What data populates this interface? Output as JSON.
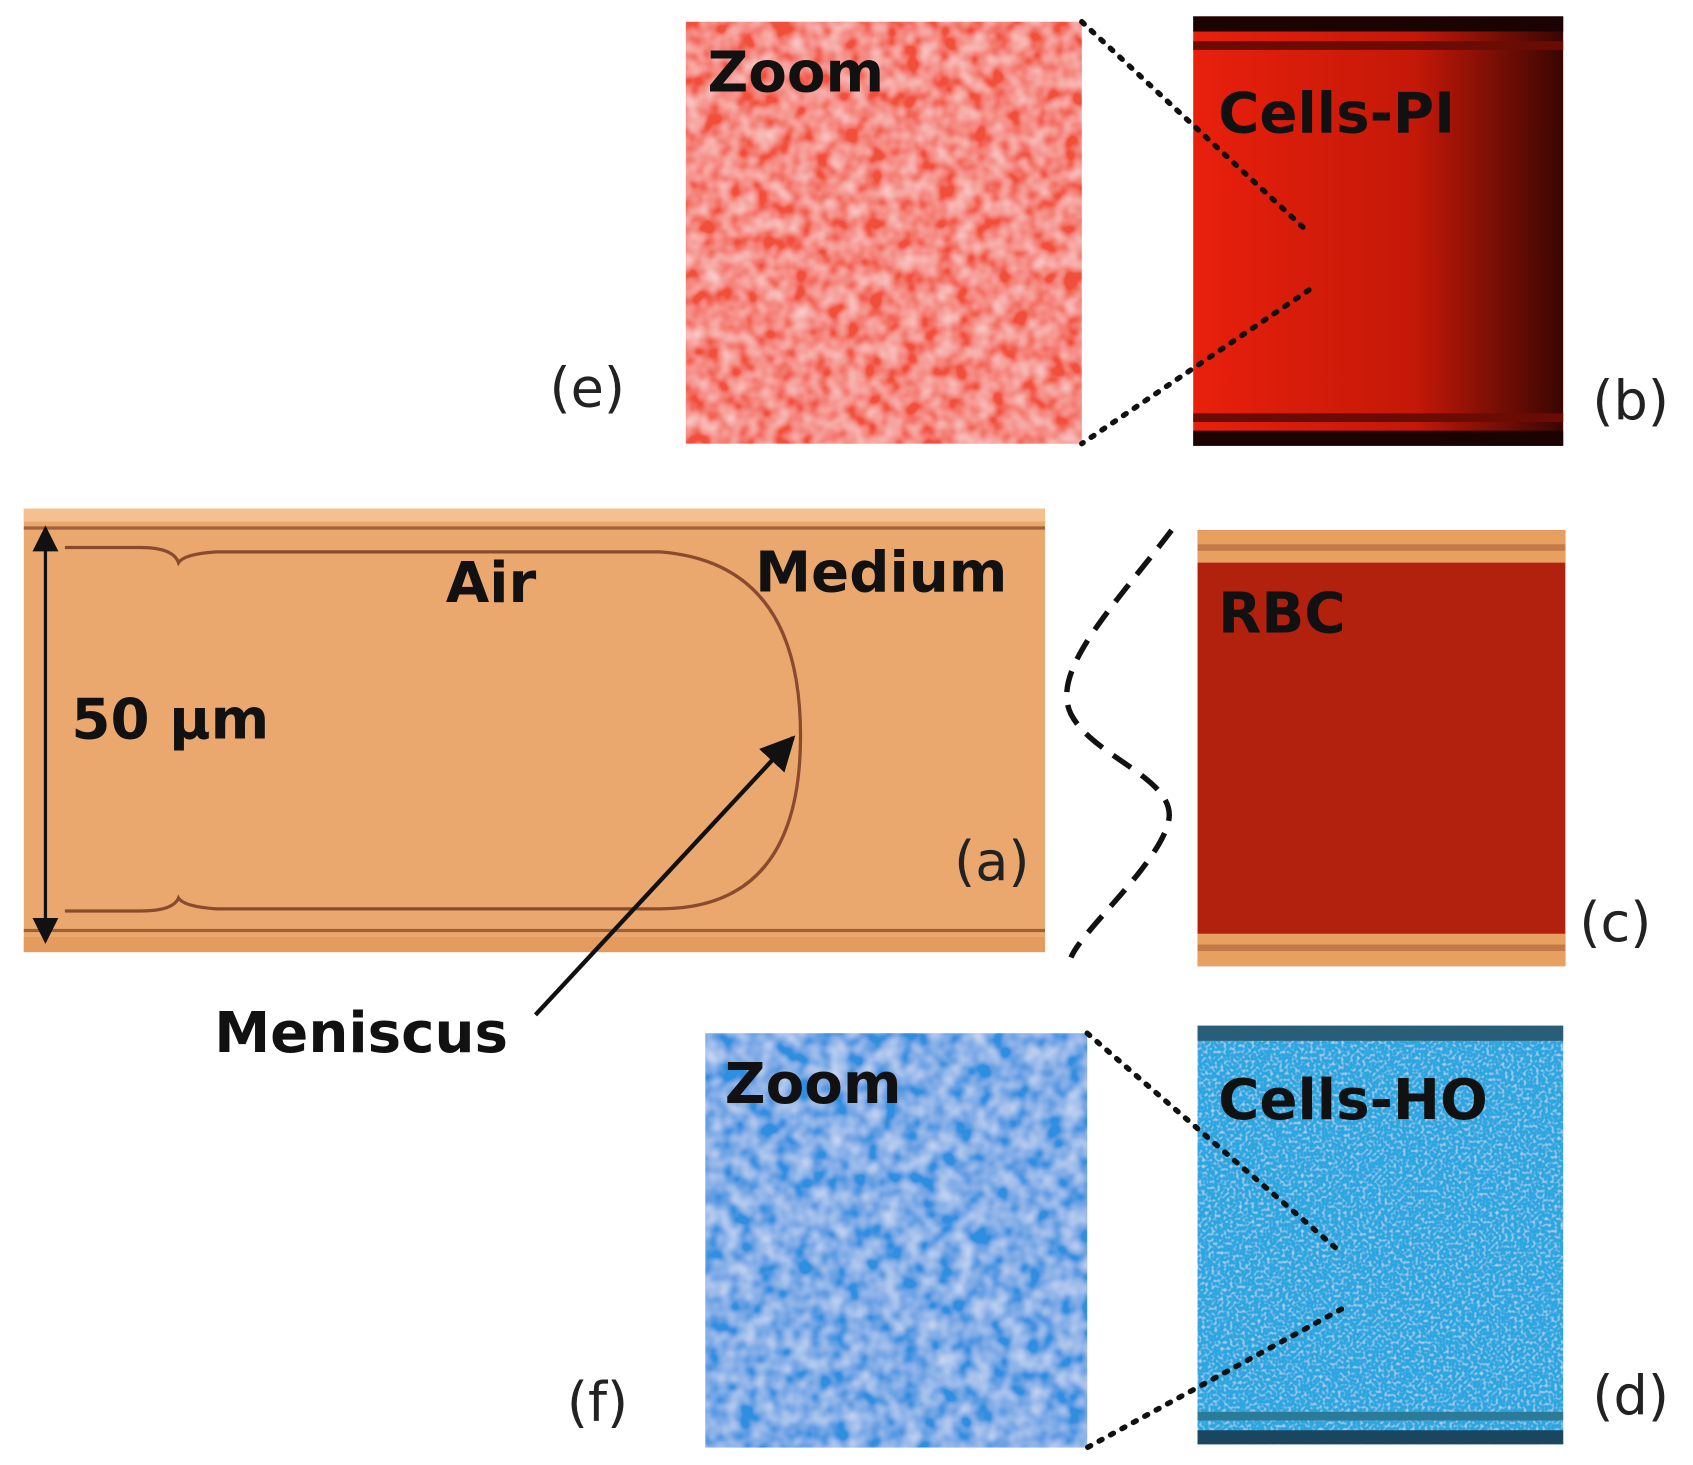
{
  "panel_a": {
    "label": "(a)",
    "air": "Air",
    "medium": "Medium",
    "scale": "50 µm",
    "meniscus": "Meniscus"
  },
  "panel_b": {
    "label": "(b)",
    "title": "Cells-PI"
  },
  "panel_c": {
    "label": "(c)",
    "title": "RBC"
  },
  "panel_d": {
    "label": "(d)",
    "title": "Cells-HO"
  },
  "panel_e": {
    "label": "(e)",
    "title": "Zoom"
  },
  "panel_f": {
    "label": "(f)",
    "title": "Zoom"
  }
}
